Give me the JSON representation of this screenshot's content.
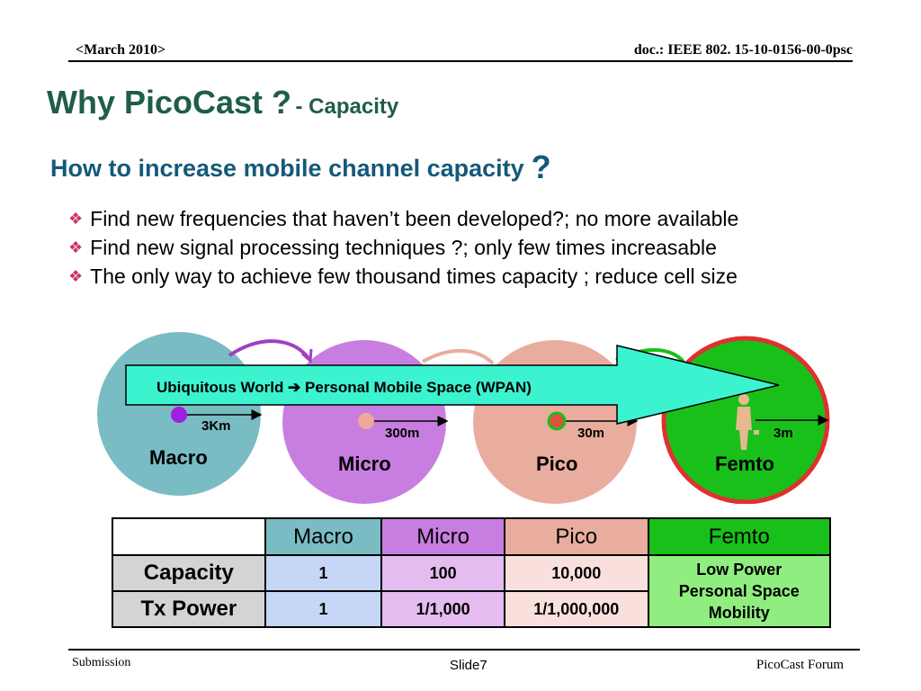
{
  "header": {
    "date": "<March 2010>",
    "doc": "doc.: IEEE 802. 15-10-0156-00-0psc"
  },
  "title": {
    "main": "Why PicoCast ?",
    "sub": "- Capacity"
  },
  "subtitle": {
    "text": "How to increase mobile channel capacity",
    "mark": "?"
  },
  "bullets": [
    "Find new frequencies that haven’t been developed?; no more available",
    "Find new signal processing techniques ?; only few times increasable",
    "The only way to achieve few thousand times capacity ; reduce cell size"
  ],
  "diagram": {
    "banner": "Ubiquitous World ➔ Personal Mobile Space (WPAN)",
    "cells": [
      {
        "name": "Macro",
        "radius": "3Km",
        "color": "#79bcc4"
      },
      {
        "name": "Micro",
        "radius": "300m",
        "color": "#c87ee0"
      },
      {
        "name": "Pico",
        "radius": "30m",
        "color": "#e8ad9e"
      },
      {
        "name": "Femto",
        "radius": "3m",
        "color": "#19c019"
      }
    ]
  },
  "table": {
    "headers": [
      "",
      "Macro",
      "Micro",
      "Pico",
      "Femto"
    ],
    "header_colors": [
      "#ffffff",
      "#79bcc4",
      "#c87ee0",
      "#e8ad9e",
      "#19c019"
    ],
    "rows": [
      {
        "label": "Capacity",
        "values": [
          "1",
          "100",
          "10,000"
        ]
      },
      {
        "label": "Tx Power",
        "values": [
          "1",
          "1/1,000",
          "1/1,000,000"
        ]
      }
    ],
    "value_colors": [
      "#c6d6f6",
      "#e4bcf0",
      "#fae0dc"
    ],
    "femto_text": [
      "Low Power",
      "Personal Space",
      "Mobility"
    ]
  },
  "footer": {
    "left": "Submission",
    "slide": "Slide7",
    "right": "PicoCast Forum"
  }
}
